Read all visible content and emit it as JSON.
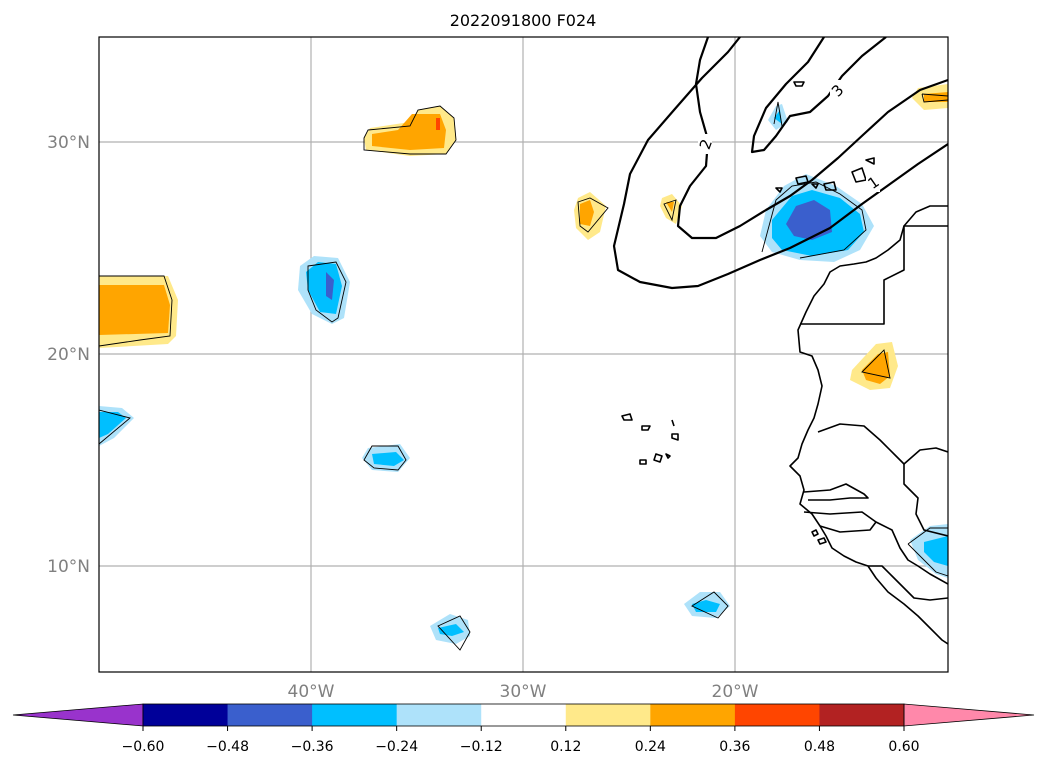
{
  "title": "2022091800 F024",
  "map": {
    "lat_labels": [
      "30°N",
      "20°N",
      "10°N"
    ],
    "lon_labels": [
      "40°W",
      "30°W",
      "20°W"
    ],
    "contour_labels": [
      "3",
      "2",
      "1"
    ]
  },
  "colorbar": {
    "ticks": [
      "−0.60",
      "−0.48",
      "−0.36",
      "−0.24",
      "−0.12",
      "0.12",
      "0.24",
      "0.36",
      "0.48",
      "0.60"
    ],
    "colors": {
      "under": "#9933cc",
      "bins": [
        "#000099",
        "#3a5fcd",
        "#00bfff",
        "#aee2fa",
        "#ffffff",
        "#ffe98a",
        "#ffa500",
        "#ff4500",
        "#b22222"
      ],
      "over": "#ff88aa"
    }
  }
}
